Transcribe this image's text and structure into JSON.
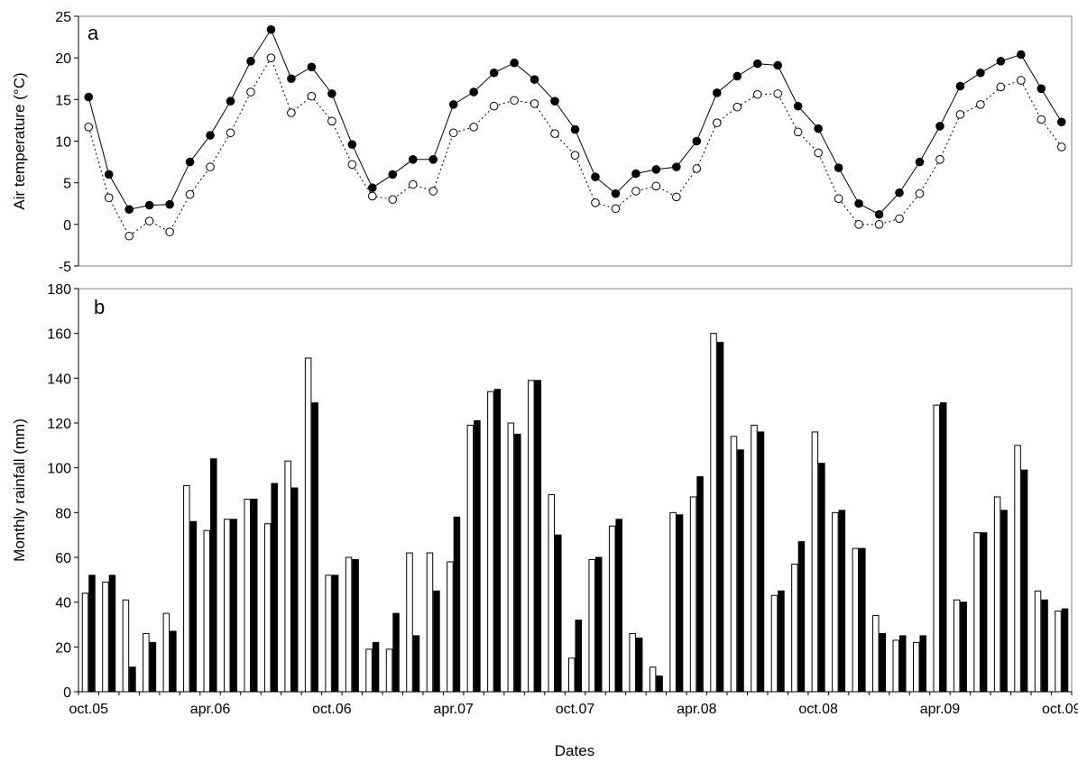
{
  "figure": {
    "xlabel": "Dates",
    "x_tick_labels": [
      "oct.05",
      "apr.06",
      "oct.06",
      "apr.07",
      "oct.07",
      "apr.08",
      "oct.08",
      "apr.09",
      "oct.09"
    ]
  },
  "chart_data": [
    {
      "type": "line",
      "panel_label": "a",
      "title": "",
      "ylabel": "Air temperature (°C)",
      "ylim": [
        -5,
        25
      ],
      "yticks": [
        -5,
        0,
        5,
        10,
        15,
        20,
        25
      ],
      "grid": false,
      "x": [
        "oct.05",
        "nov.05",
        "dec.05",
        "jan.06",
        "feb.06",
        "mar.06",
        "apr.06",
        "may.06",
        "jun.06",
        "jul.06",
        "aug.06",
        "sep.06",
        "oct.06",
        "nov.06",
        "dec.06",
        "jan.07",
        "feb.07",
        "mar.07",
        "apr.07",
        "may.07",
        "jun.07",
        "jul.07",
        "aug.07",
        "sep.07",
        "oct.07",
        "nov.07",
        "dec.07",
        "jan.08",
        "feb.08",
        "mar.08",
        "apr.08",
        "may.08",
        "jun.08",
        "jul.08",
        "aug.08",
        "sep.08",
        "oct.08",
        "nov.08",
        "dec.08",
        "jan.09",
        "feb.09",
        "mar.09",
        "apr.09",
        "may.09",
        "jun.09",
        "jul.09",
        "aug.09",
        "sep.09",
        "oct.09"
      ],
      "series": [
        {
          "marker": "filled-circle",
          "line": "solid",
          "color": "#000000",
          "values": [
            15.3,
            6.0,
            1.8,
            2.3,
            2.4,
            7.5,
            10.7,
            14.8,
            19.6,
            23.4,
            17.5,
            18.9,
            15.7,
            9.6,
            4.4,
            6.0,
            7.8,
            7.8,
            14.4,
            15.9,
            18.2,
            19.4,
            17.4,
            14.8,
            11.4,
            5.7,
            3.7,
            6.1,
            6.6,
            6.9,
            10.0,
            15.8,
            17.8,
            19.3,
            19.1,
            14.2,
            11.5,
            6.8,
            2.5,
            1.2,
            3.8,
            7.5,
            11.8,
            16.6,
            18.2,
            19.6,
            20.4,
            16.3,
            12.3
          ]
        },
        {
          "marker": "open-circle",
          "line": "dotted",
          "color": "#000000",
          "values": [
            11.7,
            3.2,
            -1.4,
            0.4,
            -0.9,
            3.6,
            6.9,
            11.0,
            15.9,
            20.0,
            13.4,
            15.4,
            12.4,
            7.2,
            3.4,
            3.0,
            4.8,
            4.0,
            11.0,
            11.7,
            14.2,
            14.9,
            14.5,
            10.9,
            8.3,
            2.6,
            1.9,
            4.0,
            4.6,
            3.3,
            6.7,
            12.2,
            14.1,
            15.6,
            15.7,
            11.1,
            8.6,
            3.1,
            0.0,
            0.0,
            0.7,
            3.7,
            7.8,
            13.2,
            14.4,
            16.5,
            17.3,
            12.6,
            9.3
          ]
        }
      ]
    },
    {
      "type": "bar",
      "panel_label": "b",
      "title": "",
      "ylabel": "Monthly rainfall (mm)",
      "ylim": [
        0,
        180
      ],
      "yticks": [
        0,
        20,
        40,
        60,
        80,
        100,
        120,
        140,
        160,
        180
      ],
      "grid": false,
      "categories": [
        "oct.05",
        "nov.05",
        "dec.05",
        "jan.06",
        "feb.06",
        "mar.06",
        "apr.06",
        "may.06",
        "jun.06",
        "jul.06",
        "aug.06",
        "sep.06",
        "oct.06",
        "nov.06",
        "dec.06",
        "jan.07",
        "feb.07",
        "mar.07",
        "apr.07",
        "may.07",
        "jun.07",
        "jul.07",
        "aug.07",
        "sep.07",
        "oct.07",
        "nov.07",
        "dec.07",
        "jan.08",
        "feb.08",
        "mar.08",
        "apr.08",
        "may.08",
        "jun.08",
        "jul.08",
        "aug.08",
        "sep.08",
        "oct.08",
        "nov.08",
        "dec.08",
        "jan.09",
        "feb.09",
        "mar.09",
        "apr.09",
        "may.09",
        "jun.09",
        "jul.09",
        "aug.09",
        "sep.09",
        "oct.09"
      ],
      "series": [
        {
          "fill": "#ffffff",
          "stroke": "#000000",
          "values": [
            44,
            49,
            41,
            26,
            35,
            92,
            72,
            77,
            86,
            75,
            103,
            149,
            52,
            60,
            19,
            19,
            62,
            62,
            58,
            119,
            134,
            120,
            139,
            88,
            15,
            59,
            74,
            26,
            11,
            80,
            87,
            160,
            114,
            119,
            43,
            57,
            116,
            80,
            64,
            34,
            23,
            22,
            128,
            41,
            71,
            87,
            110,
            45,
            36
          ]
        },
        {
          "fill": "#000000",
          "stroke": "#000000",
          "values": [
            52,
            52,
            11,
            22,
            27,
            76,
            104,
            77,
            86,
            93,
            91,
            129,
            52,
            59,
            22,
            35,
            25,
            45,
            78,
            121,
            135,
            115,
            139,
            70,
            32,
            60,
            77,
            24,
            7,
            79,
            96,
            156,
            108,
            116,
            45,
            67,
            102,
            81,
            64,
            26,
            25,
            25,
            129,
            40,
            71,
            81,
            99,
            41,
            37
          ]
        }
      ]
    }
  ]
}
